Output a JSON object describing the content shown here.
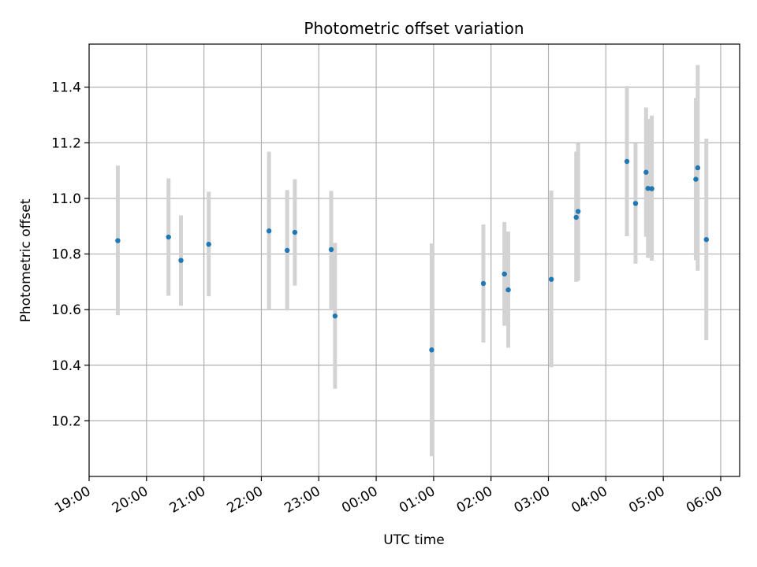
{
  "chart_data": {
    "type": "scatter",
    "title": "Photometric offset variation",
    "xlabel": "UTC time",
    "ylabel": "Photometric offset",
    "x_ticks": [
      "19:00",
      "20:00",
      "21:00",
      "22:00",
      "23:00",
      "00:00",
      "01:00",
      "02:00",
      "03:00",
      "04:00",
      "05:00",
      "06:00"
    ],
    "y_ticks": [
      "10.2",
      "10.4",
      "10.6",
      "10.8",
      "11.0",
      "11.2",
      "11.4"
    ],
    "xlim_hours": [
      19.0,
      30.33
    ],
    "ylim": [
      10.0,
      11.555
    ],
    "grid": true,
    "colors": {
      "point": "#1f77b4",
      "errorbar": "#d3d3d3",
      "grid": "#b0b0b0"
    },
    "points": [
      {
        "t": "19:30",
        "y": 10.848,
        "lo": 10.58,
        "hi": 11.118
      },
      {
        "t": "20:23",
        "y": 10.861,
        "lo": 10.65,
        "hi": 11.072
      },
      {
        "t": "20:36",
        "y": 10.777,
        "lo": 10.614,
        "hi": 10.939
      },
      {
        "t": "21:05",
        "y": 10.835,
        "lo": 10.648,
        "hi": 11.024
      },
      {
        "t": "22:08",
        "y": 10.883,
        "lo": 10.6,
        "hi": 11.168
      },
      {
        "t": "22:27",
        "y": 10.813,
        "lo": 10.597,
        "hi": 11.03
      },
      {
        "t": "22:35",
        "y": 10.878,
        "lo": 10.686,
        "hi": 11.069
      },
      {
        "t": "23:13",
        "y": 10.816,
        "lo": 10.603,
        "hi": 11.027
      },
      {
        "t": "23:17",
        "y": 10.577,
        "lo": 10.315,
        "hi": 10.84
      },
      {
        "t": "00:58",
        "y": 10.455,
        "lo": 10.073,
        "hi": 10.838
      },
      {
        "t": "01:52",
        "y": 10.694,
        "lo": 10.482,
        "hi": 10.906
      },
      {
        "t": "02:14",
        "y": 10.728,
        "lo": 10.542,
        "hi": 10.915
      },
      {
        "t": "02:18",
        "y": 10.671,
        "lo": 10.463,
        "hi": 10.881
      },
      {
        "t": "03:03",
        "y": 10.709,
        "lo": 10.393,
        "hi": 11.028
      },
      {
        "t": "03:29",
        "y": 10.932,
        "lo": 10.7,
        "hi": 11.168
      },
      {
        "t": "03:31",
        "y": 10.953,
        "lo": 10.704,
        "hi": 11.198
      },
      {
        "t": "04:22",
        "y": 11.133,
        "lo": 10.864,
        "hi": 11.404
      },
      {
        "t": "04:31",
        "y": 10.982,
        "lo": 10.765,
        "hi": 11.198
      },
      {
        "t": "04:42",
        "y": 11.094,
        "lo": 10.862,
        "hi": 11.327
      },
      {
        "t": "04:44",
        "y": 11.036,
        "lo": 10.786,
        "hi": 11.286
      },
      {
        "t": "04:48",
        "y": 11.035,
        "lo": 10.776,
        "hi": 11.298
      },
      {
        "t": "05:34",
        "y": 11.069,
        "lo": 10.778,
        "hi": 11.361
      },
      {
        "t": "05:36",
        "y": 11.11,
        "lo": 10.74,
        "hi": 11.48
      },
      {
        "t": "05:45",
        "y": 10.852,
        "lo": 10.49,
        "hi": 11.215
      }
    ]
  }
}
